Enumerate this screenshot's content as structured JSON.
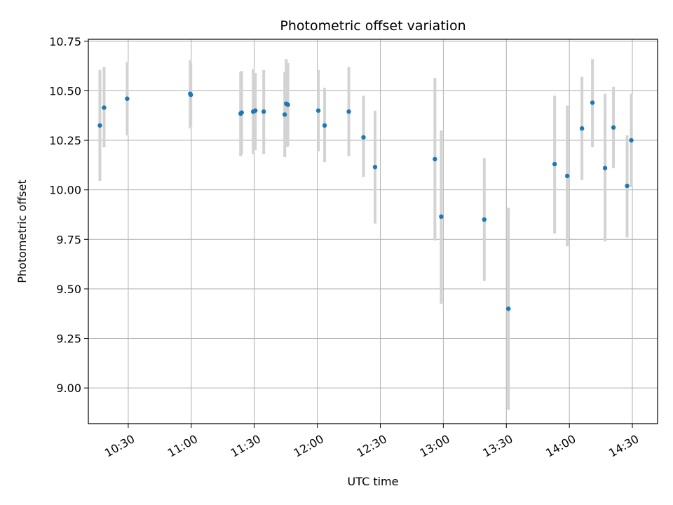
{
  "chart_data": {
    "type": "scatter",
    "title": "Photometric offset variation",
    "xlabel": "UTC time",
    "ylabel": "Photometric offset",
    "x_tick_labels": [
      "10:30",
      "11:00",
      "11:30",
      "12:00",
      "12:30",
      "13:00",
      "13:30",
      "14:00",
      "14:30"
    ],
    "x_tick_times": [
      "10:30",
      "11:00",
      "11:30",
      "12:00",
      "12:30",
      "13:00",
      "13:30",
      "14:00",
      "14:30"
    ],
    "xlim": [
      "10:11",
      "14:42"
    ],
    "y_ticks": [
      "9.00",
      "9.25",
      "9.50",
      "9.75",
      "10.00",
      "10.25",
      "10.50",
      "10.75"
    ],
    "ylim": [
      8.82,
      10.76
    ],
    "grid": true,
    "colors": {
      "point": "#1f77b4",
      "errorbar": "#d3d3d3",
      "grid": "#b0b0b0"
    },
    "points": [
      {
        "t": "10:16.5",
        "y": 10.325,
        "err_low": 10.045,
        "err_high": 10.605
      },
      {
        "t": "10:18.5",
        "y": 10.415,
        "err_low": 10.215,
        "err_high": 10.62
      },
      {
        "t": "10:29.5",
        "y": 10.46,
        "err_low": 10.275,
        "err_high": 10.645
      },
      {
        "t": "10:59.5",
        "y": 10.485,
        "err_low": 10.31,
        "err_high": 10.655
      },
      {
        "t": "10:59.8",
        "y": 10.48,
        "err_low": 10.32,
        "err_high": 10.64
      },
      {
        "t": "11:23.5",
        "y": 10.385,
        "err_low": 10.17,
        "err_high": 10.595
      },
      {
        "t": "11:24.0",
        "y": 10.39,
        "err_low": 10.18,
        "err_high": 10.6
      },
      {
        "t": "11:29.5",
        "y": 10.395,
        "err_low": 10.18,
        "err_high": 10.61
      },
      {
        "t": "11:30.5",
        "y": 10.4,
        "err_low": 10.2,
        "err_high": 10.59
      },
      {
        "t": "11:34.5",
        "y": 10.395,
        "err_low": 10.18,
        "err_high": 10.605
      },
      {
        "t": "11:44.5",
        "y": 10.38,
        "err_low": 10.165,
        "err_high": 10.595
      },
      {
        "t": "11:45.2",
        "y": 10.435,
        "err_low": 10.215,
        "err_high": 10.66
      },
      {
        "t": "11:46.0",
        "y": 10.43,
        "err_low": 10.22,
        "err_high": 10.64
      },
      {
        "t": "12:00.5",
        "y": 10.4,
        "err_low": 10.195,
        "err_high": 10.605
      },
      {
        "t": "12:03.5",
        "y": 10.325,
        "err_low": 10.14,
        "err_high": 10.515
      },
      {
        "t": "12:15.0",
        "y": 10.395,
        "err_low": 10.17,
        "err_high": 10.62
      },
      {
        "t": "12:22.0",
        "y": 10.265,
        "err_low": 10.065,
        "err_high": 10.475
      },
      {
        "t": "12:27.5",
        "y": 10.115,
        "err_low": 9.83,
        "err_high": 10.4
      },
      {
        "t": "12:56.0",
        "y": 10.155,
        "err_low": 9.745,
        "err_high": 10.565
      },
      {
        "t": "12:59.0",
        "y": 9.865,
        "err_low": 9.425,
        "err_high": 10.3
      },
      {
        "t": "13:19.5",
        "y": 9.85,
        "err_low": 9.54,
        "err_high": 10.16
      },
      {
        "t": "13:31.0",
        "y": 9.4,
        "err_low": 8.89,
        "err_high": 9.91
      },
      {
        "t": "13:53.0",
        "y": 10.13,
        "err_low": 9.78,
        "err_high": 10.475
      },
      {
        "t": "13:59.0",
        "y": 10.07,
        "err_low": 9.715,
        "err_high": 10.425
      },
      {
        "t": "14:06.0",
        "y": 10.31,
        "err_low": 10.05,
        "err_high": 10.57
      },
      {
        "t": "14:11.0",
        "y": 10.44,
        "err_low": 10.215,
        "err_high": 10.66
      },
      {
        "t": "14:17.0",
        "y": 10.11,
        "err_low": 9.74,
        "err_high": 10.485
      },
      {
        "t": "14:21.0",
        "y": 10.315,
        "err_low": 10.11,
        "err_high": 10.52
      },
      {
        "t": "14:27.5",
        "y": 10.02,
        "err_low": 9.76,
        "err_high": 10.275
      },
      {
        "t": "14:29.5",
        "y": 10.25,
        "err_low": 10.015,
        "err_high": 10.485
      }
    ]
  }
}
